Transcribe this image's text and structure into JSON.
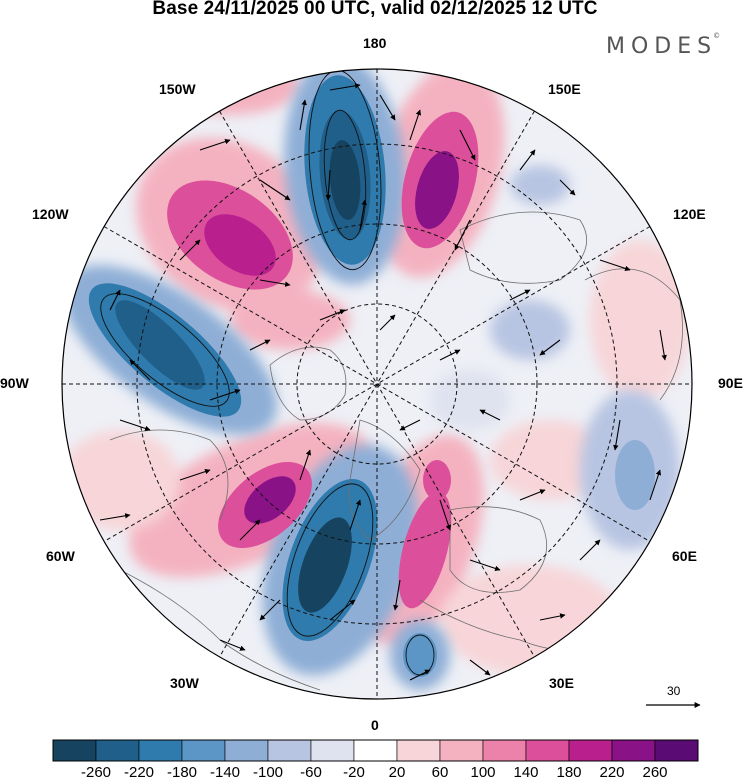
{
  "title": "Base 24/11/2025 00 UTC, valid 02/12/2025 12 UTC",
  "brand": "MODES",
  "brand_mark": "©",
  "map": {
    "longitude_labels": {
      "top": "180",
      "bottom": "0",
      "left": "90W",
      "right": "90E",
      "upper_left_1": "150W",
      "upper_left_2": "120W",
      "lower_left_1": "60W",
      "lower_left_2": "30W",
      "upper_right_1": "150E",
      "upper_right_2": "120E",
      "lower_right_1": "60E",
      "lower_right_2": "30E"
    },
    "vector_reference_label": "30"
  },
  "colorbar": {
    "ticks": [
      "-260",
      "-220",
      "-180",
      "-140",
      "-100",
      "-60",
      "-20",
      "20",
      "60",
      "100",
      "140",
      "180",
      "220",
      "260"
    ],
    "colors": [
      "#16435f",
      "#1f5f8a",
      "#2f7bad",
      "#5b96c6",
      "#8eaed6",
      "#b8c5e2",
      "#dfe2ef",
      "#ffffff",
      "#f7d5d8",
      "#f4b2c0",
      "#ec82aa",
      "#dc4f9a",
      "#b9208d",
      "#8a1287",
      "#5a0b74"
    ]
  },
  "colors": {
    "negative_strong": "#1f5f8a",
    "positive_strong": "#b9208d"
  }
}
